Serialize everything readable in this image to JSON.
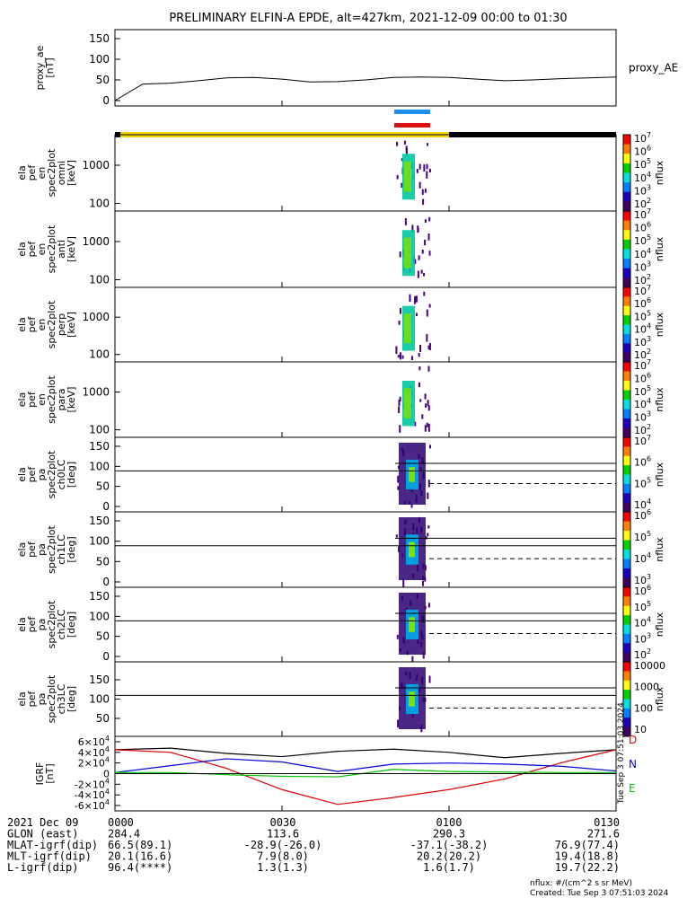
{
  "title": "PRELIMINARY ELFIN-A EPDE, alt=427km, 2021-12-09 00:00 to 01:30",
  "colors": {
    "sunlit_bar": "#f5d600",
    "shadow_bar": "#000000",
    "bar_blue": "#1e8cf0",
    "bar_red": "#e01010",
    "bx": "#e00000",
    "by": "#00c000",
    "bz": "#0000e0",
    "btot": "#000000"
  },
  "panels": [
    {
      "key": "ae",
      "ylabel": [
        "proxy_ae",
        "[nT]"
      ],
      "ticks": [
        "150",
        "100",
        "50",
        "0"
      ],
      "right_label": "proxy_AE"
    },
    {
      "key": "omni",
      "ylabel": [
        "ela",
        "pef",
        "en",
        "spec2plot",
        "omni",
        "[keV]"
      ],
      "ticks": [
        "1000",
        "100"
      ],
      "cbar_ticks": [
        "10^7",
        "10^6",
        "10^5",
        "10^4",
        "10^3",
        "10^2"
      ],
      "cbar_label": "nflux"
    },
    {
      "key": "anti",
      "ylabel": [
        "ela",
        "pef",
        "en",
        "spec2plot",
        "anti",
        "[keV]"
      ],
      "ticks": [
        "1000",
        "100"
      ],
      "cbar_ticks": [
        "10^7",
        "10^6",
        "10^5",
        "10^4",
        "10^3",
        "10^2"
      ],
      "cbar_label": "nflux"
    },
    {
      "key": "perp",
      "ylabel": [
        "ela",
        "pef",
        "en",
        "spec2plot",
        "perp",
        "[keV]"
      ],
      "ticks": [
        "1000",
        "100"
      ],
      "cbar_ticks": [
        "10^7",
        "10^6",
        "10^5",
        "10^4",
        "10^3",
        "10^2"
      ],
      "cbar_label": "nflux"
    },
    {
      "key": "para",
      "ylabel": [
        "ela",
        "pef",
        "en",
        "spec2plot",
        "para",
        "[keV]"
      ],
      "ticks": [
        "1000",
        "100"
      ],
      "cbar_ticks": [
        "10^7",
        "10^6",
        "10^5",
        "10^4",
        "10^3",
        "10^2"
      ],
      "cbar_label": "nflux"
    },
    {
      "key": "ch0",
      "ylabel": [
        "ela",
        "pef",
        "pa",
        "spec2plot",
        "ch0LC",
        "[deg]"
      ],
      "ticks": [
        "150",
        "100",
        "50",
        "0"
      ],
      "cbar_ticks": [
        "10^7",
        "10^6",
        "10^5",
        "10^4"
      ],
      "cbar_label": "nflux"
    },
    {
      "key": "ch1",
      "ylabel": [
        "ela",
        "pef",
        "pa",
        "spec2plot",
        "ch1LC",
        "[deg]"
      ],
      "ticks": [
        "150",
        "100",
        "50",
        "0"
      ],
      "cbar_ticks": [
        "10^6",
        "10^5",
        "10^4",
        "10^3"
      ],
      "cbar_label": "nflux"
    },
    {
      "key": "ch2",
      "ylabel": [
        "ela",
        "pef",
        "pa",
        "spec2plot",
        "ch2LC",
        "[deg]"
      ],
      "ticks": [
        "150",
        "100",
        "50",
        "0"
      ],
      "cbar_ticks": [
        "10^6",
        "10^5",
        "10^4",
        "10^3",
        "10^2"
      ],
      "cbar_label": "nflux"
    },
    {
      "key": "ch3",
      "ylabel": [
        "ela",
        "pef",
        "pa",
        "spec2plot",
        "ch3LC",
        "[deg]"
      ],
      "ticks": [
        "150",
        "100",
        "50"
      ],
      "cbar_ticks": [
        "10000",
        "1000",
        "100",
        "10"
      ],
      "cbar_label": "nflux"
    },
    {
      "key": "igrf",
      "ylabel": [
        "IGRF",
        "[nT]"
      ],
      "ticks": [
        "6×10^4",
        "4×10^4",
        "2×10^4",
        "0",
        "-2×10^4",
        "-4×10^4",
        "-6×10^4"
      ],
      "legend": [
        "D",
        "N",
        "E"
      ]
    }
  ],
  "chart_data": {
    "type": "line",
    "x_label_times": [
      "0000",
      "0030",
      "0100",
      "0130"
    ],
    "proxy_ae": {
      "x_min": [
        0,
        5,
        10,
        15,
        20,
        25,
        30,
        35,
        40,
        45,
        50,
        55,
        60,
        65,
        70,
        75,
        80,
        85,
        90
      ],
      "y": [
        0,
        40,
        42,
        48,
        55,
        56,
        52,
        45,
        46,
        50,
        56,
        57,
        56,
        52,
        48,
        50,
        53,
        55,
        57
      ],
      "ylim": [
        0,
        150
      ]
    },
    "igrf": {
      "x_min": [
        0,
        10,
        20,
        30,
        40,
        50,
        60,
        70,
        80,
        90
      ],
      "btot": [
        45000,
        48000,
        38000,
        32000,
        42000,
        46000,
        40000,
        30000,
        38000,
        45000
      ],
      "bx_d": [
        45000,
        40000,
        10000,
        -30000,
        -58000,
        -45000,
        -30000,
        -10000,
        20000,
        45000
      ],
      "by_n": [
        2000,
        15000,
        28000,
        22000,
        4000,
        18000,
        20000,
        18000,
        14000,
        5000
      ],
      "bz_e": [
        2000,
        2000,
        -2000,
        -5000,
        -6000,
        8000,
        4000,
        3000,
        2000,
        2000
      ],
      "ylim": [
        -65000,
        65000
      ]
    },
    "footer_rows": [
      {
        "label": "2021 Dec 09",
        "values": [
          "0000",
          "0030",
          "0100",
          "0130"
        ]
      },
      {
        "label": "GLON (east)",
        "values": [
          "284.4",
          "113.6",
          "290.3",
          "271.6"
        ]
      },
      {
        "label": "MLAT-igrf(dip)",
        "values": [
          "66.5(89.1)",
          "-28.9(-26.0)",
          "-37.1(-38.2)",
          "76.9(77.4)"
        ]
      },
      {
        "label": "MLT-igrf(dip)",
        "values": [
          "20.1(16.6)",
          "7.9(8.0)",
          "20.2(20.2)",
          "19.4(18.8)"
        ]
      },
      {
        "label": "L-igrf(dip)",
        "values": [
          "96.4(****)",
          "1.3(1.3)",
          "1.6(1.7)",
          "19.7(22.2)"
        ]
      }
    ]
  },
  "footnote1": "nflux: #/(cm^2 s sr MeV)",
  "footnote2": "Created: Tue Sep  3 07:51:03 2024",
  "side_stamp": "Tue Sep  3 07:51:03 2024"
}
